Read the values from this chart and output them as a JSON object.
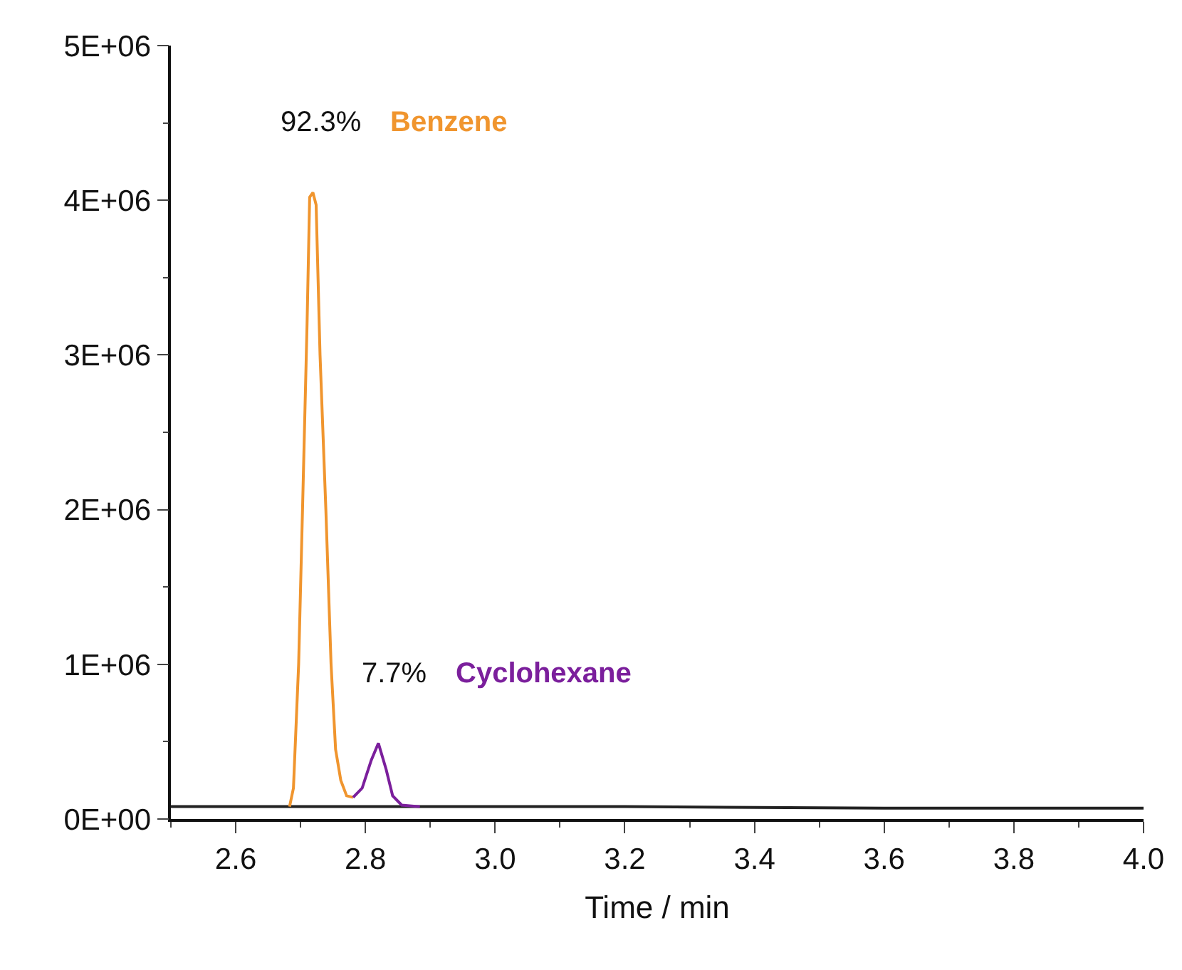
{
  "chart_data": {
    "type": "line",
    "xlabel": "Time / min",
    "series": [
      {
        "color": "#222222",
        "x": [
          2.5,
          2.683,
          2.884,
          3.2,
          3.6,
          4.0
        ],
        "values": [
          80000,
          80000,
          80000,
          80000,
          70000,
          70000
        ]
      },
      {
        "name": "Benzene",
        "color": "#f0952e",
        "x": [
          2.683,
          2.689,
          2.697,
          2.703,
          2.71,
          2.714,
          2.719,
          2.724,
          2.73,
          2.739,
          2.747,
          2.754,
          2.762,
          2.771,
          2.781
        ],
        "values": [
          80000,
          200000,
          1000000,
          2000000,
          3200000,
          4020000,
          4050000,
          3970000,
          3000000,
          2000000,
          1000000,
          450000,
          250000,
          150000,
          140000
        ]
      },
      {
        "name": "Cyclohexane",
        "color": "#7b1f9c",
        "x": [
          2.781,
          2.795,
          2.809,
          2.82,
          2.832,
          2.842,
          2.856,
          2.884
        ],
        "values": [
          140000,
          200000,
          380000,
          490000,
          320000,
          150000,
          90000,
          80000
        ]
      }
    ],
    "annotations": [
      "92.3%",
      "7.7%"
    ],
    "xlim": [
      2.5,
      4.0
    ],
    "xticks": [
      2.6,
      2.8,
      {
        "value": 3.0,
        "label": "3.0"
      },
      3.2,
      3.4,
      3.6,
      3.8,
      {
        "value": 4.0,
        "label": "4.0"
      }
    ],
    "ylim": [
      0,
      5000000
    ],
    "yticks": [
      {
        "value": 0,
        "label": "0E+00"
      },
      {
        "value": 1000000,
        "label": "1E+06"
      },
      {
        "value": 2000000,
        "label": "2E+06"
      },
      {
        "value": 3000000,
        "label": "3E+06"
      },
      {
        "value": 4000000,
        "label": "4E+06"
      },
      {
        "value": 5000000,
        "label": "5E+06"
      }
    ],
    "legend": false,
    "marker": "none",
    "line_style": "solid"
  }
}
